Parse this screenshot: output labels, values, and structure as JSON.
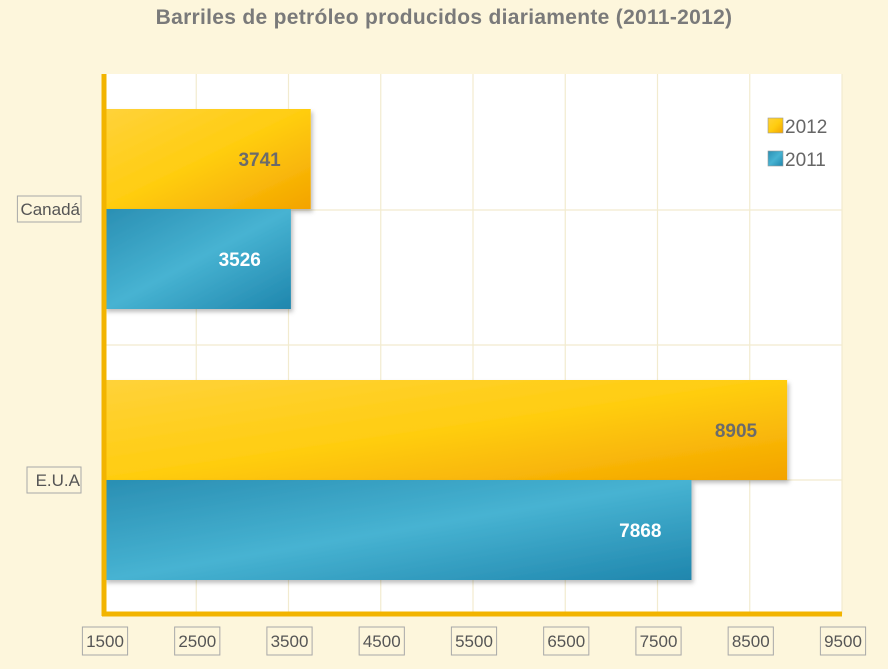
{
  "chart_data": {
    "type": "bar",
    "orientation": "horizontal",
    "title": "Barriles de petróleo producidos diariamente (2011-2012)",
    "categories": [
      "Canadá",
      "E.U.A"
    ],
    "series": [
      {
        "name": "2012",
        "values": [
          3741,
          8905
        ],
        "color": "#f5ae00",
        "label_color": "#6b6b6b"
      },
      {
        "name": "2011",
        "values": [
          3526,
          7868
        ],
        "color": "#2f9bbf",
        "label_color": "#ffffff"
      }
    ],
    "xlim": [
      1500,
      9500
    ],
    "xticks": [
      1500,
      2500,
      3500,
      4500,
      5500,
      6500,
      7500,
      8500,
      9500
    ],
    "legend": "top-right",
    "grid": true
  }
}
